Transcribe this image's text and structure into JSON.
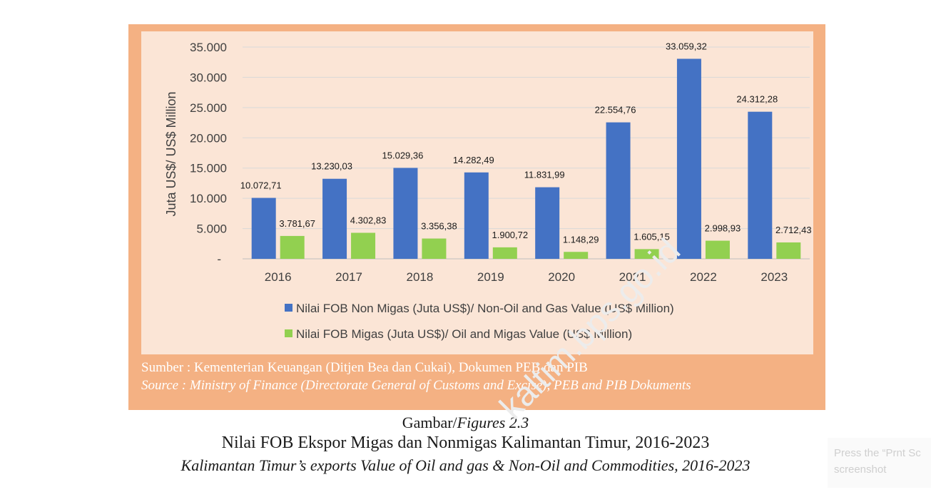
{
  "chart_data": {
    "type": "bar",
    "categories": [
      "2016",
      "2017",
      "2018",
      "2019",
      "2020",
      "2021",
      "2022",
      "2023"
    ],
    "series": [
      {
        "name": "Nilai FOB Non Migas (Juta US$)/ Non-Oil and Gas Value (US$ Million)",
        "values": [
          10072.71,
          13230.03,
          15029.36,
          14282.49,
          11831.99,
          22554.76,
          33059.32,
          24312.28
        ],
        "labels": [
          "10.072,71",
          "13.230,03",
          "15.029,36",
          "14.282,49",
          "11.831,99",
          "22.554,76",
          "33.059,32",
          "24.312,28"
        ],
        "color": "#4472c4"
      },
      {
        "name": "Nilai FOB Migas (Juta US$)/ Oil and Migas Value (US$ Million)",
        "values": [
          3781.67,
          4302.83,
          3356.38,
          1900.72,
          1148.29,
          1605.15,
          2998.93,
          2712.43
        ],
        "labels": [
          "3.781,67",
          "4.302,83",
          "3.356,38",
          "1.900,72",
          "1.148,29",
          "1.605,15",
          "2.998,93",
          "2.712,43"
        ],
        "color": "#92d050"
      }
    ],
    "ylabel": "Juta US$/ US$ Million",
    "ylim": [
      0,
      35000
    ],
    "yticks": [
      0,
      5000,
      10000,
      15000,
      20000,
      25000,
      30000,
      35000
    ],
    "ytick_labels": [
      "-",
      "5.000",
      "10.000",
      "15.000",
      "20.000",
      "25.000",
      "30.000",
      "35.000"
    ],
    "grid": true,
    "legend_position": "bottom",
    "panel_color": "#fbe5d6",
    "frame_color": "#f4b183"
  },
  "source": {
    "id": "Sumber : Kementerian Keuangan (Ditjen Bea dan Cukai), Dokumen PEB dan PIB",
    "en": "Source   : Ministry of Finance (Directorate General of Customs and Excise), PEB and PIB Dokuments"
  },
  "caption": {
    "figure_prefix": "Gambar/",
    "figure_label": "Figures 2.3",
    "title_id": "Nilai FOB Ekspor Migas dan Nonmigas Kalimantan Timur, 2016-2023",
    "title_en": "Kalimantan Timur’s  exports Value of Oil and gas & Non-Oil and Commodities, 2016-2023"
  },
  "watermark": "kaltim.bps.go.id",
  "print_hint": {
    "line1": "Press the “Prnt Sc",
    "line2": "screenshot"
  }
}
